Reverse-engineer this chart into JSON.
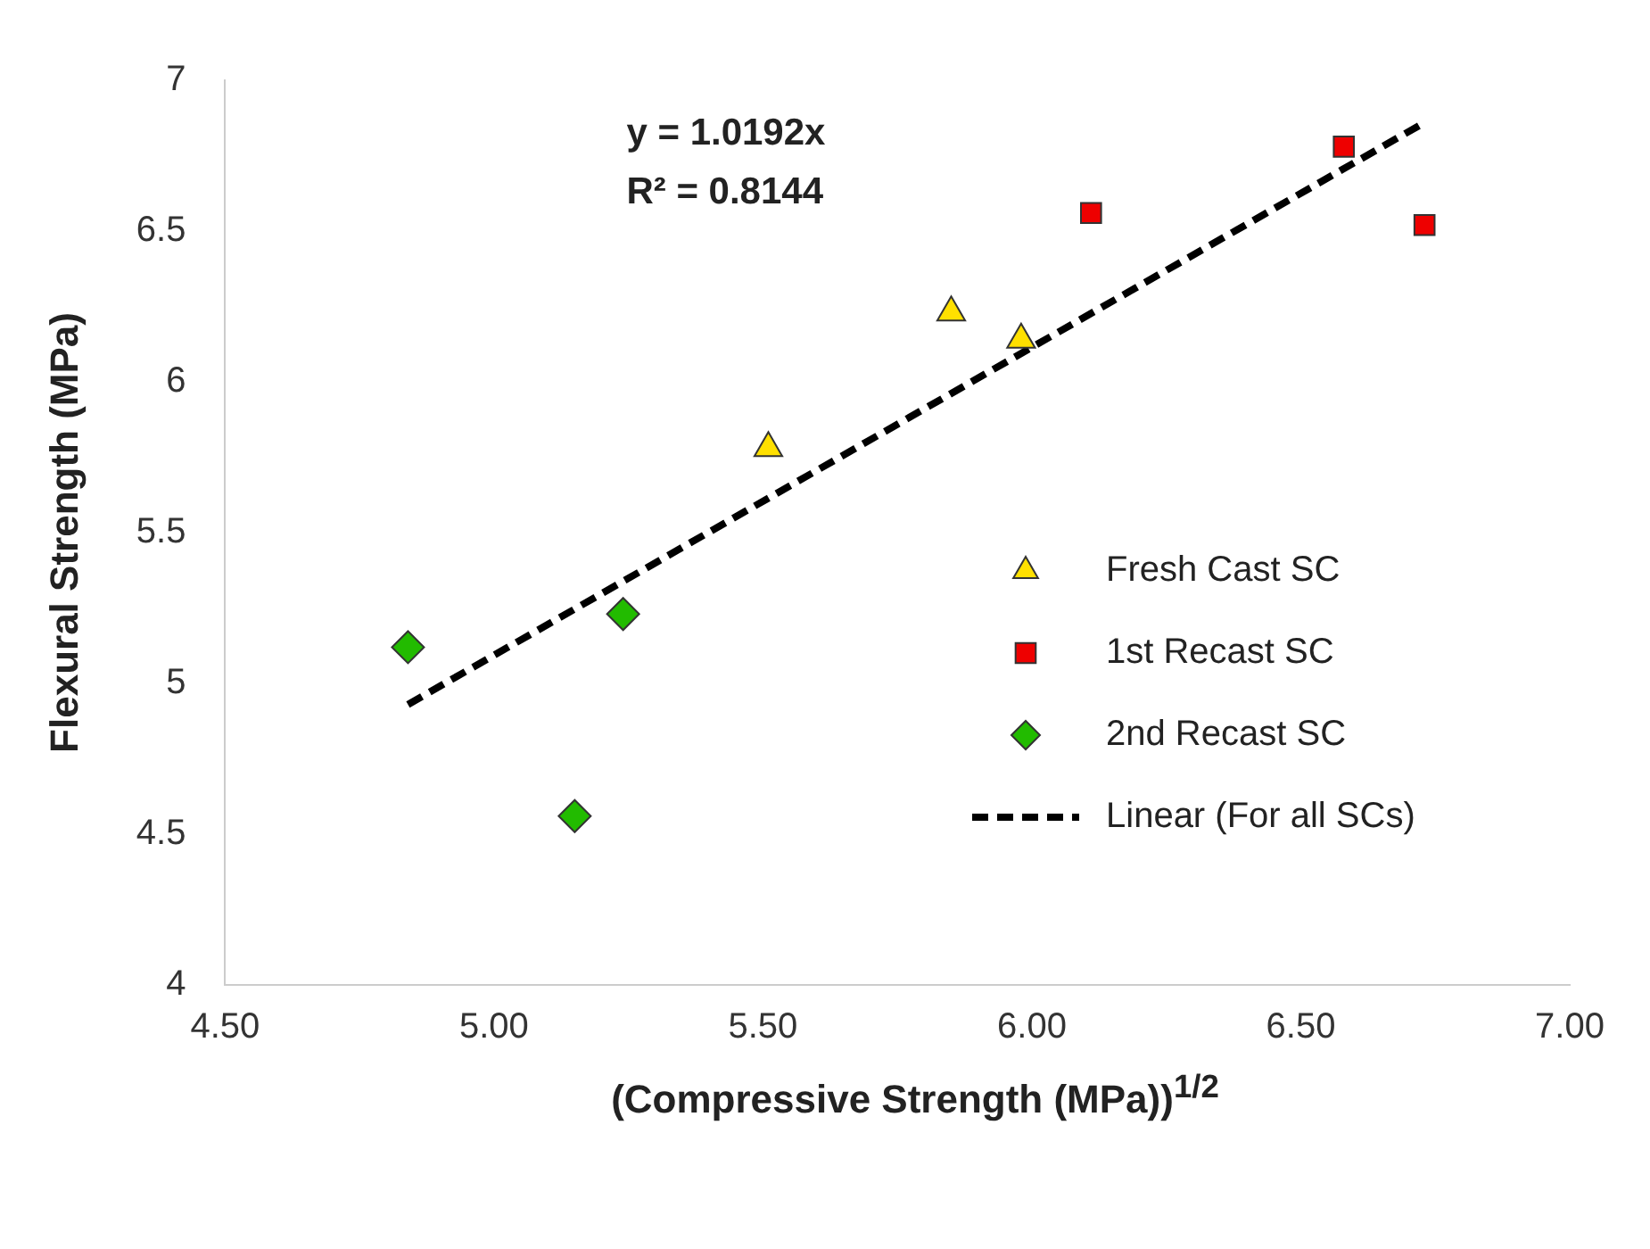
{
  "chart_data": {
    "type": "scatter",
    "xlabel": "(Compressive Strength (MPa))$^{1/2}$",
    "ylabel": "Flexural Strength (MPa)",
    "annotations": [
      "y = 1.0192x",
      "R² = 0.8144"
    ],
    "xlim": [
      4.5,
      7
    ],
    "xticks": [
      {
        "value": 4.5,
        "label": "4.50"
      },
      {
        "value": 5,
        "label": "5.00"
      },
      {
        "value": 5.5,
        "label": "5.50"
      },
      {
        "value": 6,
        "label": "6.00"
      },
      {
        "value": 6.5,
        "label": "6.50"
      },
      {
        "value": 7,
        "label": "7.00"
      }
    ],
    "ylim": [
      4,
      7
    ],
    "yticks": [
      4,
      4.5,
      5,
      5.5,
      6,
      6.5,
      7
    ],
    "grid": false,
    "legend": "right",
    "series": [
      {
        "name": "Fresh Cast SC",
        "color": "#ffe000",
        "marker": "triangle",
        "x": [
          5.51,
          5.85,
          5.98
        ],
        "values": [
          5.78,
          6.23,
          6.14
        ]
      },
      {
        "name": "1st Recast SC",
        "color": "#ee0000",
        "marker": "square",
        "x": [
          6.11,
          6.58,
          6.73
        ],
        "values": [
          6.56,
          6.78,
          6.52
        ]
      },
      {
        "name": "2nd Recast SC",
        "color": "#22bb00",
        "marker": "diamond",
        "x": [
          4.84,
          5.24,
          5.15
        ],
        "values": [
          5.12,
          5.23,
          4.56
        ]
      },
      {
        "name": "Linear (For all SCs)",
        "type": "line",
        "color": "#000000",
        "marker": "none",
        "line_style": "dashed",
        "x": [
          4.84,
          6.73
        ],
        "values": [
          4.93,
          6.86
        ]
      }
    ]
  }
}
